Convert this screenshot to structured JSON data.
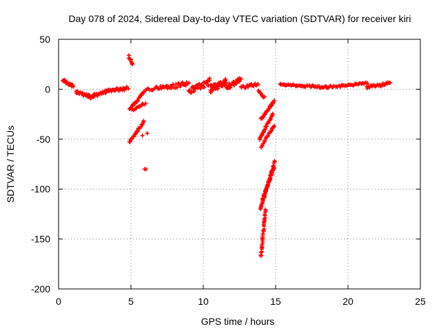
{
  "chart_data": {
    "type": "scatter",
    "title": "Day 078 of 2024, Sidereal Day-to-day VTEC variation (SDTVAR) for receiver kiri",
    "xlabel": "GPS time / hours",
    "ylabel": "SDTVAR / TECUs",
    "xlim": [
      0,
      25
    ],
    "ylim": [
      -200,
      50
    ],
    "xticks": [
      0,
      5,
      10,
      15,
      20,
      25
    ],
    "yticks": [
      50,
      0,
      -50,
      -100,
      -150,
      -200
    ],
    "grid": true,
    "marker": "+",
    "color": "#ff0000",
    "series": [
      {
        "name": "SDTVAR",
        "clusters": [
          {
            "x": [
              0.3,
              1.0
            ],
            "y": [
              9,
              3
            ],
            "spread": 2.5,
            "n": 22
          },
          {
            "x": [
              1.2,
              2.3
            ],
            "y": [
              -3,
              -8
            ],
            "spread": 3,
            "n": 25
          },
          {
            "x": [
              2.3,
              3.3
            ],
            "y": [
              -7,
              -2
            ],
            "spread": 3,
            "n": 22
          },
          {
            "x": [
              3.3,
              4.8
            ],
            "y": [
              -2,
              1
            ],
            "spread": 3,
            "n": 30
          },
          {
            "x": [
              4.85,
              5.1
            ],
            "y": [
              33,
              25
            ],
            "spread": 2,
            "n": 10
          },
          {
            "x": [
              4.9,
              5.9
            ],
            "y": [
              -20,
              -3
            ],
            "spread": 2,
            "n": 22
          },
          {
            "x": [
              5.1,
              6.0
            ],
            "y": [
              -21,
              -14
            ],
            "spread": 2,
            "n": 12
          },
          {
            "x": [
              4.9,
              5.9
            ],
            "y": [
              -53,
              -32
            ],
            "spread": 2,
            "n": 22
          },
          {
            "x": [
              5.8,
              6.1
            ],
            "y": [
              -46,
              -44
            ],
            "spread": 1,
            "n": 2
          },
          {
            "x": [
              5.95,
              6.05
            ],
            "y": [
              -80,
              -80
            ],
            "spread": 0.5,
            "n": 2
          },
          {
            "x": [
              6.0,
              7.5
            ],
            "y": [
              -1,
              3
            ],
            "spread": 3,
            "n": 20
          },
          {
            "x": [
              7.5,
              9.0
            ],
            "y": [
              2,
              6
            ],
            "spread": 5,
            "n": 25
          },
          {
            "x": [
              9.0,
              10.5
            ],
            "y": [
              -1,
              8
            ],
            "spread": 7,
            "n": 40
          },
          {
            "x": [
              10.5,
              11.6
            ],
            "y": [
              0,
              8
            ],
            "spread": 7,
            "n": 45
          },
          {
            "x": [
              11.6,
              12.6
            ],
            "y": [
              2,
              10
            ],
            "spread": 5,
            "n": 35
          },
          {
            "x": [
              12.6,
              13.8
            ],
            "y": [
              2,
              5
            ],
            "spread": 3,
            "n": 20
          },
          {
            "x": [
              13.8,
              14.2
            ],
            "y": [
              -2,
              -8
            ],
            "spread": 2,
            "n": 8
          },
          {
            "x": [
              14.0,
              14.9
            ],
            "y": [
              -30,
              -12
            ],
            "spread": 2,
            "n": 25
          },
          {
            "x": [
              13.9,
              14.8
            ],
            "y": [
              -50,
              -25
            ],
            "spread": 2,
            "n": 25
          },
          {
            "x": [
              14.0,
              14.9
            ],
            "y": [
              -58,
              -36
            ],
            "spread": 2,
            "n": 20
          },
          {
            "x": [
              13.95,
              14.95
            ],
            "y": [
              -120,
              -72
            ],
            "spread": 2,
            "n": 40
          },
          {
            "x": [
              14.1,
              14.9
            ],
            "y": [
              -110,
              -78
            ],
            "spread": 2,
            "n": 30
          },
          {
            "x": [
              14.0,
              14.3
            ],
            "y": [
              -167,
              -120
            ],
            "spread": 1.5,
            "n": 30
          },
          {
            "x": [
              15.3,
              17.0
            ],
            "y": [
              5,
              3
            ],
            "spread": 1.5,
            "n": 25
          },
          {
            "x": [
              17.0,
              18.5
            ],
            "y": [
              3,
              2
            ],
            "spread": 2,
            "n": 22
          },
          {
            "x": [
              18.5,
              20.0
            ],
            "y": [
              2,
              4
            ],
            "spread": 2,
            "n": 20
          },
          {
            "x": [
              20.0,
              21.3
            ],
            "y": [
              4,
              6
            ],
            "spread": 1.5,
            "n": 18
          },
          {
            "x": [
              21.3,
              22.9
            ],
            "y": [
              2,
              6
            ],
            "spread": 2.5,
            "n": 28
          }
        ]
      }
    ]
  }
}
